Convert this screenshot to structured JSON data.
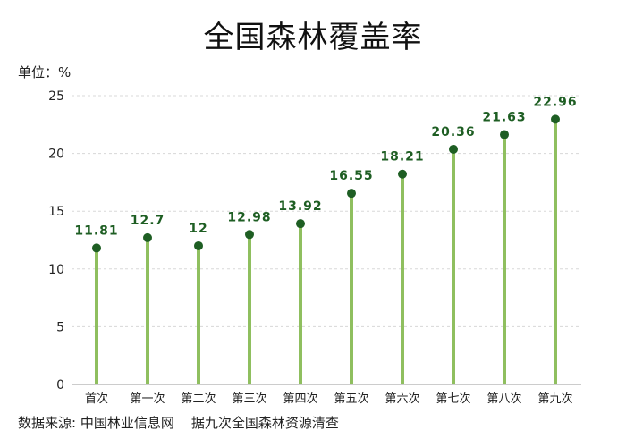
{
  "header": {
    "title": "全国森林覆盖率",
    "unit_label": "单位：%"
  },
  "footer": {
    "source": "数据来源: 中国林业信息网    据九次全国森林资源清查"
  },
  "colors": {
    "stem": "#8fbf5f",
    "dot": "#1e5e23",
    "value_label": "#1e5e23",
    "gridline": "#d8d8d8",
    "axis": "#cccccc"
  },
  "chart_data": {
    "type": "lollipop",
    "title": "全国森林覆盖率",
    "ylabel": "单位：%",
    "xlabel": "",
    "categories": [
      "首次",
      "第一次",
      "第二次",
      "第三次",
      "第四次",
      "第五次",
      "第六次",
      "第七次",
      "第八次",
      "第九次"
    ],
    "values": [
      11.81,
      12.7,
      12,
      12.98,
      13.92,
      16.55,
      18.21,
      20.36,
      21.63,
      22.96
    ],
    "value_labels": [
      "11.81",
      "12.7",
      "12",
      "12.98",
      "13.92",
      "16.55",
      "18.21",
      "20.36",
      "21.63",
      "22.96"
    ],
    "ylim": [
      0,
      25
    ],
    "yticks": [
      0,
      5,
      10,
      15,
      20,
      25
    ],
    "grid": true,
    "legend": null,
    "annotation": "数据来源: 中国林业信息网    据九次全国森林资源清查"
  }
}
